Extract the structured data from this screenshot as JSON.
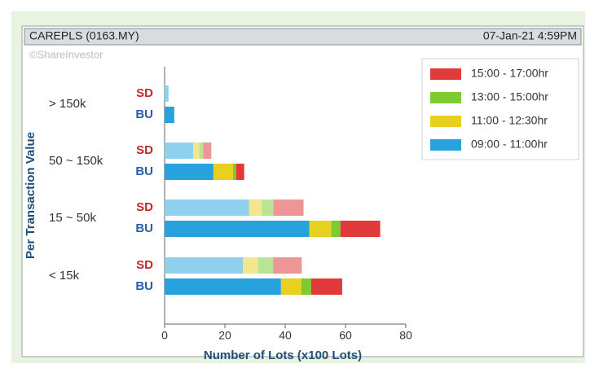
{
  "chart_data": {
    "type": "stacked_hbar_pairs",
    "title": "CAREPLS (0163.MY)",
    "timestamp": "07-Jan-21 4:59PM",
    "watermark": "©ShareInvestor",
    "y_label": "Per Transaction Value",
    "x_label": "Number of Lots (x100 Lots)",
    "categories": [
      "> 150k",
      "50 ~ 150k",
      "15 ~ 50k",
      "< 15k"
    ],
    "bar_labels": [
      "SD",
      "BU"
    ],
    "series": [
      {
        "name": "15:00 - 17:00hr",
        "color": "#e03a3a",
        "light_color": "#ee9595",
        "sd_values": [
          0,
          2.7,
          10,
          9.5
        ],
        "bu_values": [
          0,
          2.7,
          13.2,
          10.3
        ]
      },
      {
        "name": "13:00 - 15:00hr",
        "color": "#7dcb2c",
        "light_color": "#b9e494",
        "sd_values": [
          0,
          1.3,
          3.8,
          5
        ],
        "bu_values": [
          0,
          1,
          3,
          3.2
        ]
      },
      {
        "name": "11:00 - 12:30hr",
        "color": "#e8d020",
        "light_color": "#f2e68e",
        "sd_values": [
          0,
          2,
          4.3,
          5
        ],
        "bu_values": [
          0,
          6.5,
          7.3,
          6.8
        ]
      },
      {
        "name": "09:00 - 11:00hr",
        "color": "#27a2dc",
        "light_color": "#8fd0ef",
        "sd_values": [
          1.3,
          9.5,
          28,
          26
        ],
        "bu_values": [
          3.2,
          16.2,
          48,
          38.6
        ]
      }
    ],
    "xlim": [
      0,
      80
    ],
    "xticks": [
      0,
      20,
      40,
      60,
      80
    ]
  }
}
